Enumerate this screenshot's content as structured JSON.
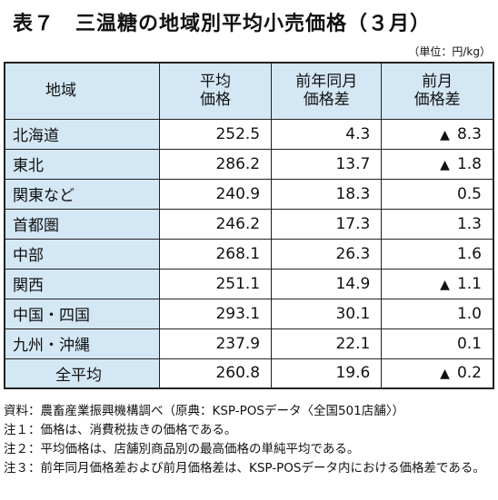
{
  "title": "表７　三温糖の地域別平均小売価格（３月）",
  "unit": "（単位：円/kg）",
  "headers": {
    "region": "地域",
    "avg_price_line1": "平均",
    "avg_price_line2": "価格",
    "yoy_diff_line1": "前年同月",
    "yoy_diff_line2": "価格差",
    "mom_diff_line1": "前月",
    "mom_diff_line2": "価格差"
  },
  "rows": [
    {
      "region": "北海道",
      "avg": "252.5",
      "yoy": "4.3",
      "mom_sign": "▲",
      "mom": "8.3"
    },
    {
      "region": "東北",
      "avg": "286.2",
      "yoy": "13.7",
      "mom_sign": "▲",
      "mom": "1.8"
    },
    {
      "region": "関東など",
      "avg": "240.9",
      "yoy": "18.3",
      "mom_sign": "",
      "mom": "0.5"
    },
    {
      "region": "首都圏",
      "avg": "246.2",
      "yoy": "17.3",
      "mom_sign": "",
      "mom": "1.3"
    },
    {
      "region": "中部",
      "avg": "268.1",
      "yoy": "26.3",
      "mom_sign": "",
      "mom": "1.6"
    },
    {
      "region": "関西",
      "avg": "251.1",
      "yoy": "14.9",
      "mom_sign": "▲",
      "mom": "1.1"
    },
    {
      "region": "中国・四国",
      "avg": "293.1",
      "yoy": "30.1",
      "mom_sign": "",
      "mom": "1.0"
    },
    {
      "region": "九州・沖縄",
      "avg": "237.9",
      "yoy": "22.1",
      "mom_sign": "",
      "mom": "0.1"
    }
  ],
  "total_row": {
    "region": "全平均",
    "avg": "260.8",
    "yoy": "19.6",
    "mom_sign": "▲",
    "mom": "0.2"
  },
  "notes": [
    {
      "label": "資料：",
      "text": "農畜産業振興機構調べ（原典：KSP-POSデータ〈全国501店舗〉）"
    },
    {
      "label": "注１：",
      "text": "価格は、消費税抜きの価格である。"
    },
    {
      "label": "注２：",
      "text": "平均価格は、店舗別商品別の最高価格の単純平均である。"
    },
    {
      "label": "注３：",
      "text": "前年同月価格差および前月価格差は、KSP-POSデータ内における価格差である。"
    }
  ]
}
